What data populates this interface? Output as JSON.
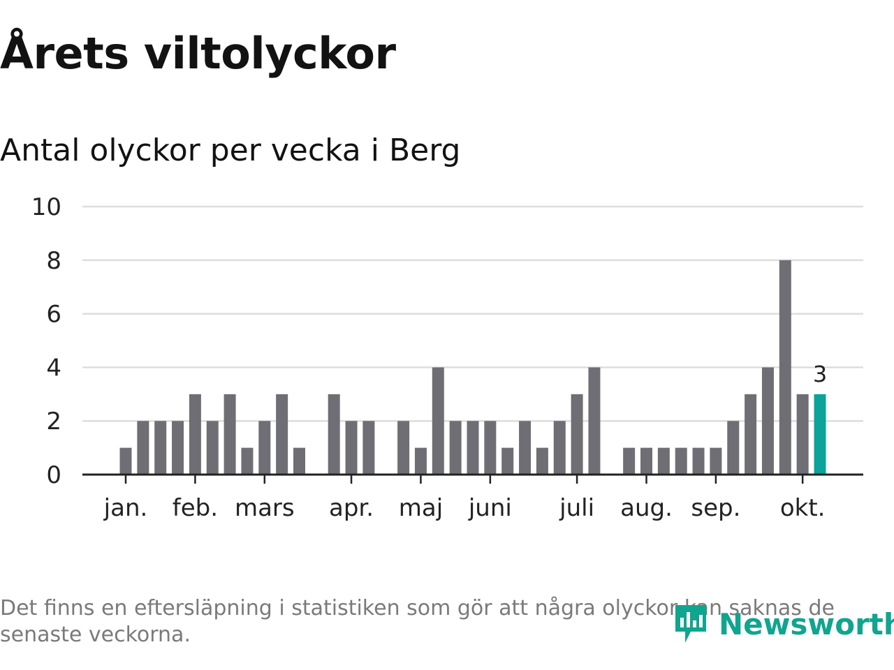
{
  "title": "Årets viltolyckor",
  "subtitle": "Antal olyckor per vecka i Berg",
  "footnote": "Det finns en eftersläpning i statistiken som gör att några olyckor kan saknas de senaste veckorna.",
  "brand": {
    "name": "Newsworthy",
    "color": "#0fa58f"
  },
  "colors": {
    "bar": "#6f6e74",
    "highlight": "#0ba39a",
    "grid": "#dddddd",
    "axis": "#222222",
    "text": "#222222"
  },
  "chart_data": {
    "type": "bar",
    "title": "Antal olyckor per vecka i Berg",
    "xlabel": "",
    "ylabel": "",
    "ylim": [
      0,
      10
    ],
    "yticks": [
      0,
      2,
      4,
      6,
      8,
      10
    ],
    "grid": true,
    "weeks": [
      1,
      2,
      3,
      4,
      5,
      6,
      7,
      8,
      9,
      10,
      11,
      12,
      13,
      14,
      15,
      16,
      17,
      18,
      19,
      20,
      21,
      22,
      23,
      24,
      25,
      26,
      27,
      28,
      29,
      30,
      31,
      32,
      33,
      34,
      35,
      36,
      37,
      38,
      39,
      40,
      41,
      42,
      43,
      44
    ],
    "values": [
      1,
      2,
      2,
      2,
      3,
      2,
      3,
      1,
      2,
      3,
      1,
      0,
      3,
      2,
      2,
      0,
      2,
      1,
      4,
      2,
      2,
      2,
      1,
      2,
      1,
      2,
      3,
      4,
      0,
      1,
      1,
      1,
      1,
      1,
      1,
      2,
      3,
      4,
      8,
      3,
      3,
      0,
      0,
      0
    ],
    "highlight_week": 41,
    "highlight_label": "3",
    "month_ticks": [
      {
        "label": "jan.",
        "week": 1
      },
      {
        "label": "feb.",
        "week": 5
      },
      {
        "label": "mars",
        "week": 9
      },
      {
        "label": "apr.",
        "week": 14
      },
      {
        "label": "maj",
        "week": 18
      },
      {
        "label": "juni",
        "week": 22
      },
      {
        "label": "juli",
        "week": 27
      },
      {
        "label": "aug.",
        "week": 31
      },
      {
        "label": "sep.",
        "week": 35
      },
      {
        "label": "okt.",
        "week": 40
      }
    ]
  }
}
